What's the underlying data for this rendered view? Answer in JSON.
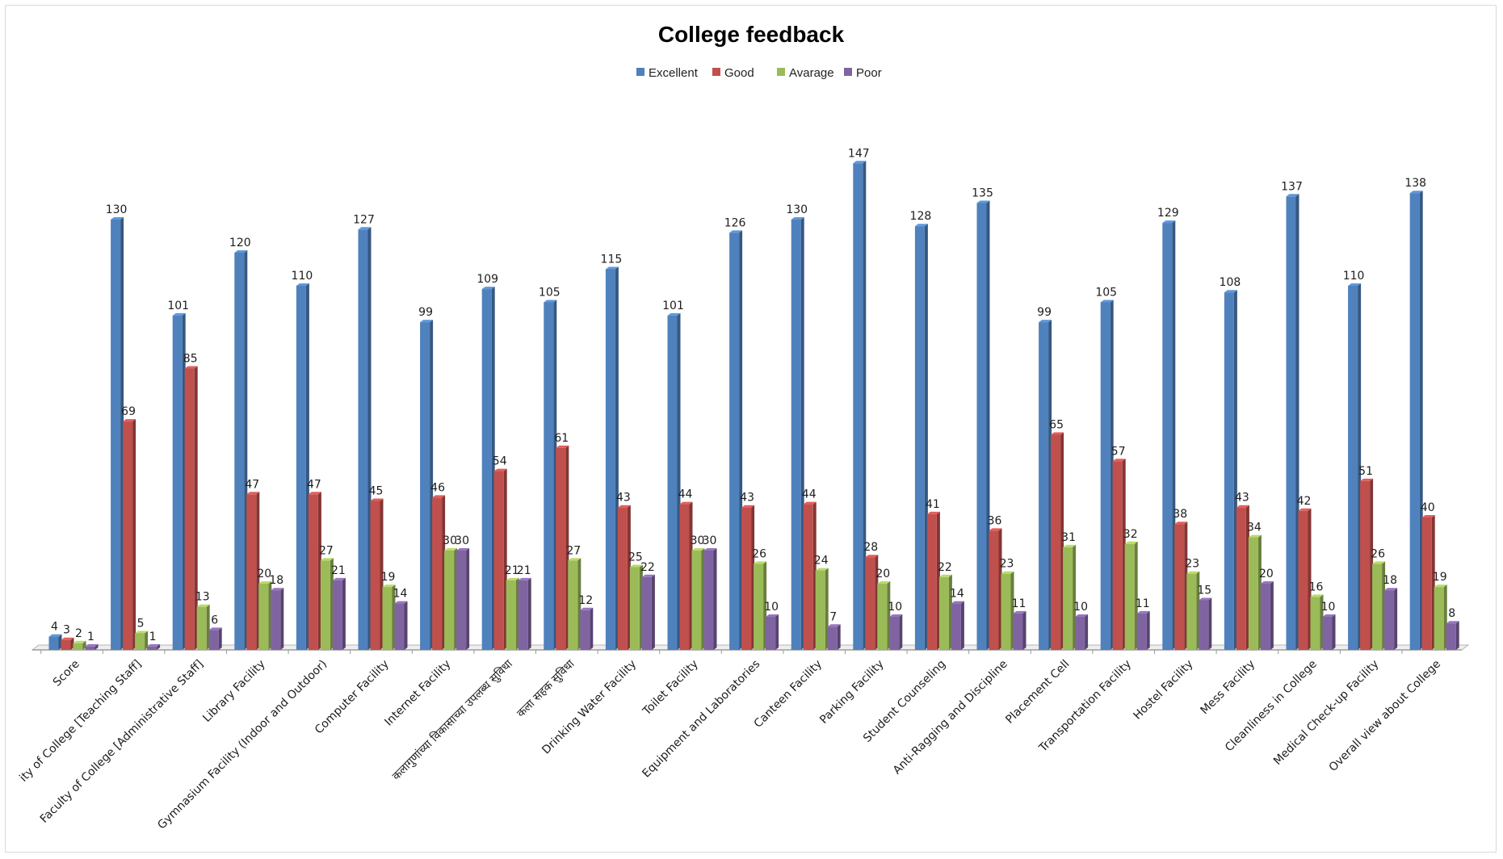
{
  "chart_data": {
    "type": "bar",
    "title": "College feedback",
    "xlabel": "",
    "ylabel": "",
    "ylim": [
      0,
      150
    ],
    "legend_position": "top",
    "grid": false,
    "categories": [
      "Score",
      "ity of College [Teaching Staff]",
      "Faculty of College [Administrative Staff]",
      "Library Facility",
      "Gymnasium Facility (Indoor and Outdoor)",
      "Computer Facility",
      "Internet Facility",
      "कलागुणांच्या विकासाच्या उपलब्ध सुविधा",
      "कला सहक सुविधा",
      "Drinking Water Facility",
      "Toilet Facility",
      "Equipment and Laboratories",
      "Canteen Facility",
      "Parking Facility",
      "Student Counseling",
      "Anti-Ragging and Discipline",
      "Placement Cell",
      "Transportation Facility",
      "Hostel Facility",
      "Mess Facility",
      "Cleanliness in College",
      "Medical Check-up Facility",
      "Overall view about College"
    ],
    "series": [
      {
        "name": "Excellent",
        "color": "#4F81BD",
        "values": [
          4,
          130,
          101,
          120,
          110,
          127,
          99,
          109,
          105,
          115,
          101,
          126,
          130,
          147,
          128,
          135,
          99,
          105,
          129,
          108,
          137,
          110,
          138
        ]
      },
      {
        "name": "Good",
        "color": "#C0504D",
        "values": [
          3,
          69,
          85,
          47,
          47,
          45,
          46,
          54,
          61,
          43,
          44,
          43,
          44,
          28,
          41,
          36,
          65,
          57,
          38,
          43,
          42,
          51,
          40
        ]
      },
      {
        "name": "Avarage",
        "color": "#9BBB59",
        "values": [
          2,
          5,
          13,
          20,
          27,
          19,
          30,
          21,
          27,
          25,
          30,
          26,
          24,
          20,
          22,
          23,
          31,
          32,
          23,
          34,
          16,
          26,
          19
        ]
      },
      {
        "name": "Poor",
        "color": "#8064A2",
        "values": [
          1,
          1,
          6,
          18,
          21,
          14,
          30,
          21,
          12,
          22,
          30,
          10,
          7,
          10,
          14,
          11,
          10,
          11,
          15,
          20,
          10,
          18,
          8
        ]
      }
    ]
  }
}
